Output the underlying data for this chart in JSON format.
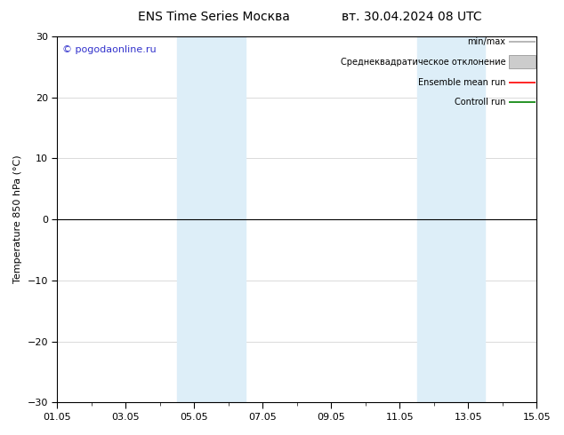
{
  "title_left": "ENS Time Series Москва",
  "title_right": "вт. 30.04.2024 08 UTC",
  "ylabel": "Temperature 850 hPa (°C)",
  "ylim": [
    -30,
    30
  ],
  "yticks": [
    -30,
    -20,
    -10,
    0,
    10,
    20,
    30
  ],
  "xtick_labels": [
    "01.05",
    "03.05",
    "05.05",
    "07.05",
    "09.05",
    "11.05",
    "13.05",
    "15.05"
  ],
  "xtick_positions": [
    0,
    2,
    4,
    6,
    8,
    10,
    12,
    14
  ],
  "shaded_bands": [
    {
      "xstart": 3.5,
      "xend": 5.5,
      "color": "#ddeef8"
    },
    {
      "xstart": 10.5,
      "xend": 12.5,
      "color": "#ddeef8"
    }
  ],
  "hline_y": 0,
  "hline_color": "#000000",
  "watermark": "© pogodaonline.ru",
  "legend_items": [
    {
      "label": "min/max",
      "color": "#aaaaaa",
      "type": "line"
    },
    {
      "label": "Среднеквадратическое отклонение",
      "facecolor": "#cccccc",
      "edgecolor": "#999999",
      "type": "rect"
    },
    {
      "label": "Ensemble mean run",
      "color": "#ff0000",
      "type": "line"
    },
    {
      "label": "Controll run",
      "color": "#008000",
      "type": "line"
    }
  ],
  "background_color": "#ffffff",
  "plot_bg_color": "#ffffff",
  "grid_color": "#cccccc",
  "border_color": "#000000",
  "title_fontsize": 10,
  "ylabel_fontsize": 8,
  "tick_fontsize": 8,
  "legend_fontsize": 7,
  "watermark_fontsize": 8
}
